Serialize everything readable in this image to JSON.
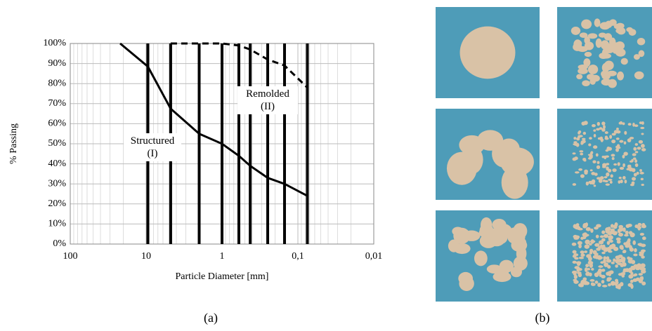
{
  "chart_data": {
    "type": "line",
    "y_label": "% Passing",
    "x_label": "Particle Diameter [mm]",
    "log_x": true,
    "x_reversed": true,
    "grid": true,
    "xlim": [
      100,
      0.01
    ],
    "xticks": [
      100,
      10,
      1,
      {
        "value": 0.1,
        "label": "0,1"
      },
      {
        "value": 0.01,
        "label": "0,01"
      }
    ],
    "ylim": [
      0,
      100
    ],
    "yticks": [
      {
        "value": 0,
        "label": "0%"
      },
      {
        "value": 10,
        "label": "10%"
      },
      {
        "value": 20,
        "label": "20%"
      },
      {
        "value": 30,
        "label": "30%"
      },
      {
        "value": 40,
        "label": "40%"
      },
      {
        "value": 50,
        "label": "50%"
      },
      {
        "value": 60,
        "label": "60%"
      },
      {
        "value": 70,
        "label": "70%"
      },
      {
        "value": 80,
        "label": "80%"
      },
      {
        "value": 90,
        "label": "90%"
      },
      {
        "value": 100,
        "label": "100%"
      }
    ],
    "sieves": [
      9.5,
      4.75,
      2,
      1,
      0.6,
      0.425,
      0.25,
      0.15,
      0.075
    ],
    "series": [
      {
        "name": "Structured (I)",
        "color": "#000000",
        "style": "solid",
        "x": [
          22,
          9.5,
          4.75,
          2,
          1,
          0.6,
          0.425,
          0.25,
          0.15,
          0.075
        ],
        "values": [
          100,
          88.5,
          67.5,
          55,
          50,
          44,
          39,
          33,
          30,
          24
        ]
      },
      {
        "name": "Remolded (II)",
        "color": "#000000",
        "style": "dashed",
        "x": [
          4.75,
          2,
          1,
          0.6,
          0.425,
          0.25,
          0.15,
          0.075
        ],
        "values": [
          100,
          100,
          100,
          99,
          97,
          92,
          89,
          78
        ]
      }
    ]
  },
  "captions": [
    "(a)",
    "(b)"
  ]
}
